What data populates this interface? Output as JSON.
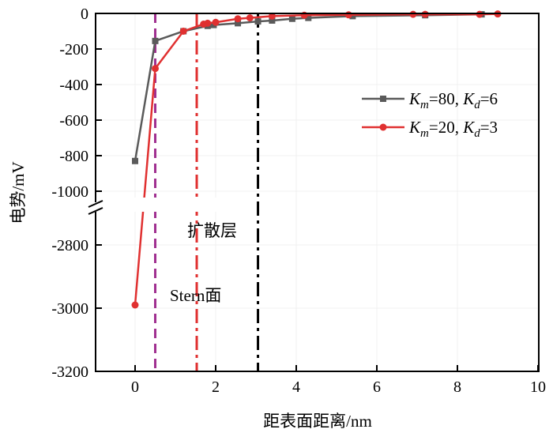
{
  "chart_data": {
    "type": "line",
    "xlabel": "距表面距离/nm",
    "ylabel": "电势/mV",
    "xlim": [
      -1,
      10
    ],
    "ylim_upper": [
      -1100,
      0
    ],
    "ylim_lower": [
      -3200,
      -2737
    ],
    "y_break": true,
    "x_ticks": [
      0,
      2,
      4,
      6,
      8,
      10
    ],
    "y_ticks_upper": [
      0,
      -200,
      -400,
      -600,
      -800,
      -1000
    ],
    "y_ticks_lower": [
      -2800,
      -3000,
      -3200
    ],
    "legend_position": "right",
    "series": [
      {
        "name_main": "K",
        "name_sub1": "m",
        "name_mid": "=80, ",
        "name_k2": "K",
        "name_sub2": "d",
        "name_end": "=6",
        "color": "#5a5a5a",
        "marker": "square",
        "x": [
          0,
          0.5,
          1.2,
          1.8,
          1.95,
          2.55,
          3.05,
          3.4,
          3.9,
          4.3,
          5.4,
          7.2,
          8.6
        ],
        "y": [
          -830,
          -155,
          -100,
          -70,
          -65,
          -55,
          -45,
          -40,
          -30,
          -25,
          -15,
          -10,
          -5
        ]
      },
      {
        "name_main": "K",
        "name_sub1": "m",
        "name_mid": "=20, ",
        "name_k2": "K",
        "name_sub2": "d",
        "name_end": "=3",
        "color": "#e03030",
        "marker": "circle",
        "x": [
          0,
          0.5,
          1.2,
          1.7,
          1.8,
          2.0,
          2.55,
          2.85,
          3.4,
          4.2,
          5.3,
          6.9,
          7.2,
          8.55,
          9.0
        ],
        "y": [
          -2990,
          -310,
          -100,
          -60,
          -55,
          -50,
          -30,
          -25,
          -15,
          -10,
          -8,
          -5,
          -5,
          -5,
          -3
        ]
      }
    ],
    "vlines": [
      {
        "x": 0.5,
        "color": "#a03090",
        "style": "dashed"
      },
      {
        "x": 1.53,
        "color": "#e03030",
        "style": "dashdot"
      },
      {
        "x": 3.05,
        "color": "#000000",
        "style": "dashdot"
      }
    ],
    "annotations": [
      {
        "text": "扩散层",
        "x": 1.3,
        "y": -2740
      },
      {
        "text": "Stern面",
        "x": 0.85,
        "y": -2955
      }
    ]
  }
}
